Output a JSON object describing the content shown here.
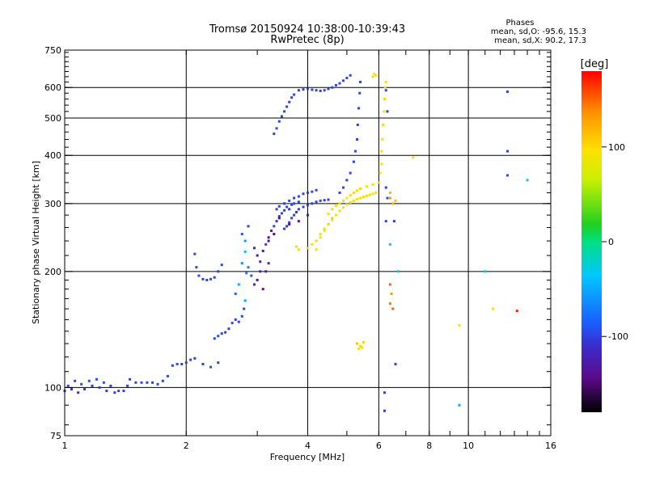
{
  "chart_data": {
    "type": "scatter",
    "title": "Tromsø 20150924 10:38:00-10:39:43",
    "subtitle": "RwPretec (8p)",
    "xlabel": "Frequency [MHz]",
    "ylabel": "Stationary phase Virtual Height [km]",
    "x_scale": "log",
    "y_scale": "log",
    "xlim": [
      1,
      16
    ],
    "ylim": [
      75,
      750
    ],
    "x_ticks": [
      1,
      2,
      4,
      6,
      8,
      10,
      16
    ],
    "y_ticks": [
      75,
      100,
      200,
      300,
      400,
      500,
      600,
      750
    ],
    "x_gridlines": [
      2,
      4,
      6,
      8,
      10
    ],
    "y_gridlines": [
      100,
      200,
      300,
      400,
      500,
      600
    ],
    "grid": true,
    "phases_box": {
      "heading": "Phases",
      "line_o": "mean, sd,O: -95.6, 15.3",
      "line_x": "mean, sd,X:  90.2, 17.3"
    },
    "colorbar": {
      "label": "[deg]",
      "range": [
        -180,
        180
      ],
      "ticks": [
        100,
        0,
        -100
      ],
      "colormap": [
        "#000000",
        "#5a0a8a",
        "#3a2fd0",
        "#1a5cff",
        "#00c8ff",
        "#00e080",
        "#20d020",
        "#c8f000",
        "#ffe000",
        "#ff9000",
        "#ff0000"
      ]
    },
    "series": [
      {
        "points": [
          [
            1.0,
            98,
            -100
          ],
          [
            1.02,
            101,
            -95
          ],
          [
            1.04,
            99,
            -110
          ],
          [
            1.06,
            104,
            -98
          ],
          [
            1.08,
            97,
            -105
          ],
          [
            1.1,
            102,
            -90
          ],
          [
            1.12,
            99,
            -100
          ],
          [
            1.15,
            104,
            -95
          ],
          [
            1.17,
            101,
            -108
          ],
          [
            1.2,
            105,
            -92
          ],
          [
            1.22,
            100,
            -100
          ],
          [
            1.25,
            103,
            -95
          ],
          [
            1.27,
            98,
            -100
          ],
          [
            1.3,
            101,
            -105
          ],
          [
            1.33,
            97,
            -100
          ],
          [
            1.36,
            98,
            -95
          ],
          [
            1.4,
            98,
            -100
          ],
          [
            1.43,
            101,
            -98
          ],
          [
            1.45,
            105,
            -100
          ],
          [
            1.5,
            103,
            -100
          ],
          [
            1.55,
            103,
            -95
          ],
          [
            1.6,
            103,
            -100
          ],
          [
            1.65,
            103,
            -102
          ],
          [
            1.7,
            102,
            -98
          ],
          [
            1.75,
            104,
            -100
          ],
          [
            1.8,
            107,
            -96
          ],
          [
            1.85,
            114,
            -100
          ],
          [
            1.9,
            115,
            -95
          ],
          [
            1.95,
            115,
            -100
          ],
          [
            2.0,
            116,
            -102
          ],
          [
            2.05,
            118,
            -98
          ],
          [
            2.1,
            119,
            -100
          ],
          [
            2.2,
            115,
            -100
          ],
          [
            2.3,
            113,
            -95
          ],
          [
            2.4,
            116,
            -100
          ],
          [
            2.1,
            222,
            -100
          ],
          [
            2.12,
            205,
            -98
          ],
          [
            2.15,
            195,
            -95
          ],
          [
            2.2,
            191,
            -100
          ],
          [
            2.25,
            190,
            -100
          ],
          [
            2.3,
            191,
            -95
          ],
          [
            2.35,
            193,
            -102
          ],
          [
            2.4,
            200,
            -98
          ],
          [
            2.45,
            208,
            -100
          ],
          [
            2.35,
            134,
            -100
          ],
          [
            2.4,
            136,
            -95
          ],
          [
            2.45,
            138,
            -100
          ],
          [
            2.5,
            139,
            -98
          ],
          [
            2.55,
            142,
            -100
          ],
          [
            2.6,
            147,
            -95
          ],
          [
            2.65,
            150,
            -100
          ],
          [
            2.7,
            148,
            -100
          ],
          [
            2.75,
            153,
            -95
          ],
          [
            2.65,
            175,
            -80
          ],
          [
            2.7,
            185,
            -50
          ],
          [
            2.75,
            210,
            -60
          ],
          [
            2.8,
            225,
            -40
          ],
          [
            2.85,
            205,
            -70
          ],
          [
            2.9,
            195,
            -90
          ],
          [
            2.95,
            185,
            -110
          ],
          [
            2.8,
            240,
            -60
          ],
          [
            2.75,
            250,
            -90
          ],
          [
            2.85,
            262,
            -100
          ],
          [
            2.8,
            168,
            -50
          ],
          [
            2.78,
            160,
            -95
          ],
          [
            2.82,
            198,
            -70
          ],
          [
            2.95,
            230,
            -120
          ],
          [
            3.0,
            220,
            -130
          ],
          [
            3.05,
            212,
            -110
          ],
          [
            3.1,
            226,
            -125
          ],
          [
            3.15,
            235,
            -100
          ],
          [
            3.2,
            245,
            -130
          ],
          [
            3.25,
            255,
            -120
          ],
          [
            3.3,
            262,
            -100
          ],
          [
            3.35,
            270,
            -110
          ],
          [
            3.4,
            278,
            -100
          ],
          [
            3.45,
            283,
            -95
          ],
          [
            3.5,
            288,
            -100
          ],
          [
            3.55,
            294,
            -98
          ],
          [
            3.6,
            290,
            -105
          ],
          [
            3.65,
            298,
            -100
          ],
          [
            3.7,
            300,
            -95
          ],
          [
            3.8,
            303,
            -100
          ],
          [
            3.1,
            180,
            -140
          ],
          [
            3.15,
            200,
            -130
          ],
          [
            3.2,
            210,
            -120
          ],
          [
            3.0,
            190,
            -135
          ],
          [
            3.05,
            200,
            -125
          ],
          [
            3.5,
            258,
            -100
          ],
          [
            3.55,
            262,
            -105
          ],
          [
            3.6,
            268,
            -100
          ],
          [
            3.65,
            275,
            -95
          ],
          [
            3.7,
            280,
            -100
          ],
          [
            3.75,
            285,
            -110
          ],
          [
            3.8,
            290,
            -100
          ],
          [
            3.9,
            294,
            -100
          ],
          [
            4.0,
            297,
            -95
          ],
          [
            4.1,
            300,
            -100
          ],
          [
            4.2,
            303,
            -100
          ],
          [
            4.3,
            305,
            -95
          ],
          [
            4.4,
            306,
            -100
          ],
          [
            4.5,
            307,
            -100
          ],
          [
            3.35,
            290,
            -100
          ],
          [
            3.4,
            295,
            -98
          ],
          [
            3.5,
            300,
            -100
          ],
          [
            3.6,
            305,
            -95
          ],
          [
            3.7,
            310,
            -100
          ],
          [
            3.8,
            313,
            -100
          ],
          [
            3.9,
            318,
            -98
          ],
          [
            4.0,
            320,
            -100
          ],
          [
            4.1,
            322,
            -95
          ],
          [
            4.2,
            325,
            -100
          ],
          [
            4.8,
            320,
            -100
          ],
          [
            4.9,
            330,
            -95
          ],
          [
            5.0,
            345,
            -100
          ],
          [
            5.1,
            360,
            -98
          ],
          [
            5.2,
            385,
            -100
          ],
          [
            5.25,
            410,
            -95
          ],
          [
            5.3,
            440,
            -100
          ],
          [
            5.32,
            480,
            -100
          ],
          [
            5.35,
            530,
            -95
          ],
          [
            5.38,
            580,
            -100
          ],
          [
            5.4,
            620,
            -98
          ],
          [
            3.3,
            455,
            -100
          ],
          [
            3.35,
            470,
            -95
          ],
          [
            3.4,
            490,
            -100
          ],
          [
            3.45,
            505,
            -100
          ],
          [
            3.5,
            520,
            -95
          ],
          [
            3.55,
            535,
            -100
          ],
          [
            3.6,
            550,
            -98
          ],
          [
            3.65,
            565,
            -100
          ],
          [
            3.7,
            575,
            -95
          ],
          [
            3.8,
            590,
            -100
          ],
          [
            3.9,
            593,
            -100
          ],
          [
            4.0,
            595,
            -95
          ],
          [
            4.1,
            592,
            -100
          ],
          [
            4.2,
            590,
            -98
          ],
          [
            4.3,
            588,
            -100
          ],
          [
            4.4,
            590,
            -95
          ],
          [
            4.5,
            595,
            -100
          ],
          [
            4.6,
            600,
            -100
          ],
          [
            4.7,
            608,
            -95
          ],
          [
            4.8,
            615,
            -100
          ],
          [
            4.9,
            625,
            -98
          ],
          [
            5.0,
            635,
            -100
          ],
          [
            5.1,
            645,
            -95
          ],
          [
            3.4,
            275,
            -140
          ],
          [
            3.6,
            265,
            -140
          ],
          [
            3.8,
            270,
            -135
          ],
          [
            4.0,
            280,
            -130
          ],
          [
            3.2,
            240,
            -140
          ],
          [
            3.3,
            250,
            -145
          ],
          [
            6.2,
            97,
            -100
          ],
          [
            6.2,
            87,
            -100
          ],
          [
            6.25,
            330,
            -100
          ],
          [
            6.3,
            310,
            -95
          ],
          [
            6.25,
            270,
            -100
          ],
          [
            6.3,
            520,
            -100
          ],
          [
            6.25,
            590,
            -95
          ],
          [
            6.55,
            270,
            -105
          ],
          [
            6.7,
            200,
            -40
          ],
          [
            6.6,
            115,
            -100
          ],
          [
            6.4,
            235,
            -20
          ],
          [
            12.5,
            585,
            -100
          ],
          [
            12.5,
            410,
            -100
          ],
          [
            12.5,
            355,
            -95
          ],
          [
            14.0,
            345,
            -30
          ],
          [
            9.5,
            90,
            -50
          ],
          [
            11.0,
            200,
            -30
          ]
        ]
      },
      {
        "points": [
          [
            4.2,
            240,
            100
          ],
          [
            4.3,
            250,
            95
          ],
          [
            4.4,
            258,
            100
          ],
          [
            4.5,
            265,
            105
          ],
          [
            4.6,
            272,
            100
          ],
          [
            4.7,
            280,
            95
          ],
          [
            4.8,
            287,
            100
          ],
          [
            4.9,
            293,
            100
          ],
          [
            5.0,
            298,
            95
          ],
          [
            5.1,
            302,
            100
          ],
          [
            5.2,
            305,
            100
          ],
          [
            5.3,
            308,
            95
          ],
          [
            5.4,
            310,
            100
          ],
          [
            5.5,
            312,
            102
          ],
          [
            5.6,
            314,
            98
          ],
          [
            5.7,
            316,
            100
          ],
          [
            5.8,
            318,
            95
          ],
          [
            5.9,
            320,
            100
          ],
          [
            4.0,
            230,
            100
          ],
          [
            4.1,
            235,
            98
          ],
          [
            4.2,
            228,
            100
          ],
          [
            4.3,
            245,
            95
          ],
          [
            4.5,
            282,
            100
          ],
          [
            4.6,
            290,
            100
          ],
          [
            4.7,
            296,
            98
          ],
          [
            4.8,
            300,
            100
          ],
          [
            4.9,
            305,
            100
          ],
          [
            5.0,
            310,
            95
          ],
          [
            5.1,
            315,
            100
          ],
          [
            5.2,
            320,
            100
          ],
          [
            5.3,
            324,
            98
          ],
          [
            5.4,
            328,
            100
          ],
          [
            5.6,
            332,
            95
          ],
          [
            5.8,
            336,
            100
          ],
          [
            6.0,
            340,
            100
          ],
          [
            6.05,
            360,
            95
          ],
          [
            6.1,
            380,
            100
          ],
          [
            6.1,
            410,
            100
          ],
          [
            6.12,
            440,
            98
          ],
          [
            6.15,
            480,
            100
          ],
          [
            6.18,
            520,
            95
          ],
          [
            6.2,
            560,
            100
          ],
          [
            6.22,
            600,
            100
          ],
          [
            6.25,
            620,
            95
          ],
          [
            5.8,
            640,
            100
          ],
          [
            5.85,
            650,
            98
          ],
          [
            5.9,
            645,
            100
          ],
          [
            5.3,
            130,
            110
          ],
          [
            5.4,
            128,
            100
          ],
          [
            5.5,
            131,
            105
          ],
          [
            5.35,
            126,
            95
          ],
          [
            5.45,
            127,
            100
          ],
          [
            6.4,
            310,
            130
          ],
          [
            6.4,
            320,
            120
          ],
          [
            6.45,
            175,
            130
          ],
          [
            6.4,
            165,
            145
          ],
          [
            6.5,
            160,
            150
          ],
          [
            6.4,
            185,
            150
          ],
          [
            7.3,
            395,
            95
          ],
          [
            11.5,
            160,
            95
          ],
          [
            13.2,
            158,
            170
          ],
          [
            9.5,
            145,
            95
          ],
          [
            6.5,
            300,
            120
          ],
          [
            6.6,
            305,
            115
          ],
          [
            3.8,
            228,
            95
          ],
          [
            3.75,
            232,
            100
          ],
          [
            4.4,
            255,
            95
          ],
          [
            4.6,
            275,
            105
          ]
        ]
      }
    ]
  }
}
